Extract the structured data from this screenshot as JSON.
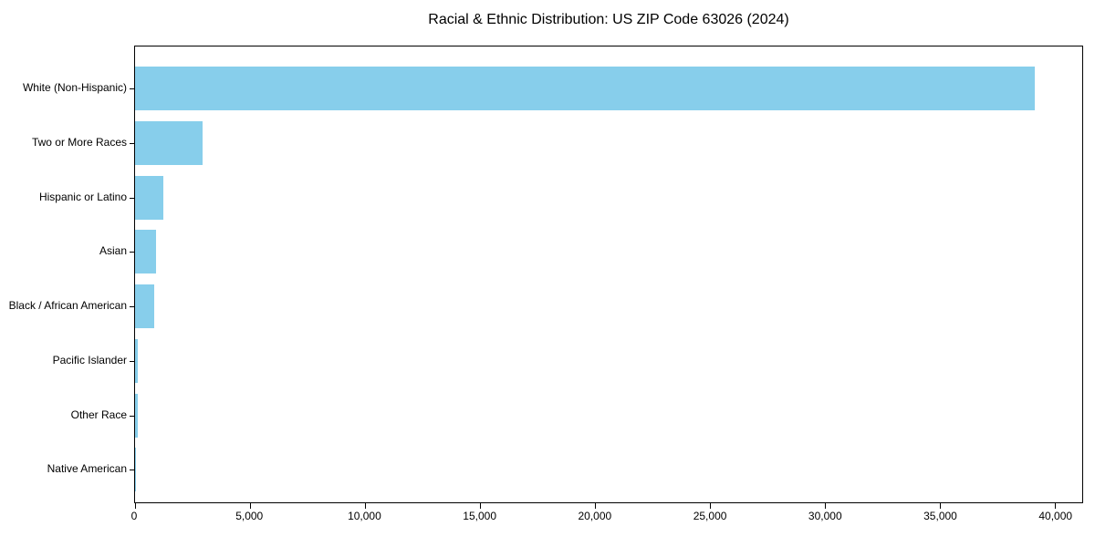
{
  "chart_data": {
    "type": "bar",
    "orientation": "horizontal",
    "title": "Racial & Ethnic Distribution: US ZIP Code 63026 (2024)",
    "categories": [
      "White (Non-Hispanic)",
      "Two or More Races",
      "Hispanic or Latino",
      "Asian",
      "Black / African American",
      "Pacific Islander",
      "Other Race",
      "Native American"
    ],
    "values": [
      39140,
      2940,
      1250,
      920,
      830,
      110,
      130,
      20
    ],
    "xlabel": "",
    "ylabel": "",
    "xlim": [
      0,
      41200
    ],
    "xticks": [
      {
        "value": 0,
        "label": "0"
      },
      {
        "value": 5000,
        "label": "5,000"
      },
      {
        "value": 10000,
        "label": "10,000"
      },
      {
        "value": 15000,
        "label": "15,000"
      },
      {
        "value": 20000,
        "label": "20,000"
      },
      {
        "value": 25000,
        "label": "25,000"
      },
      {
        "value": 30000,
        "label": "30,000"
      },
      {
        "value": 35000,
        "label": "35,000"
      },
      {
        "value": 40000,
        "label": "40,000"
      }
    ],
    "bar_color": "#87CEEB",
    "axis_color": "#000000",
    "text_color": "#000000",
    "grid": false,
    "legend": "none"
  }
}
